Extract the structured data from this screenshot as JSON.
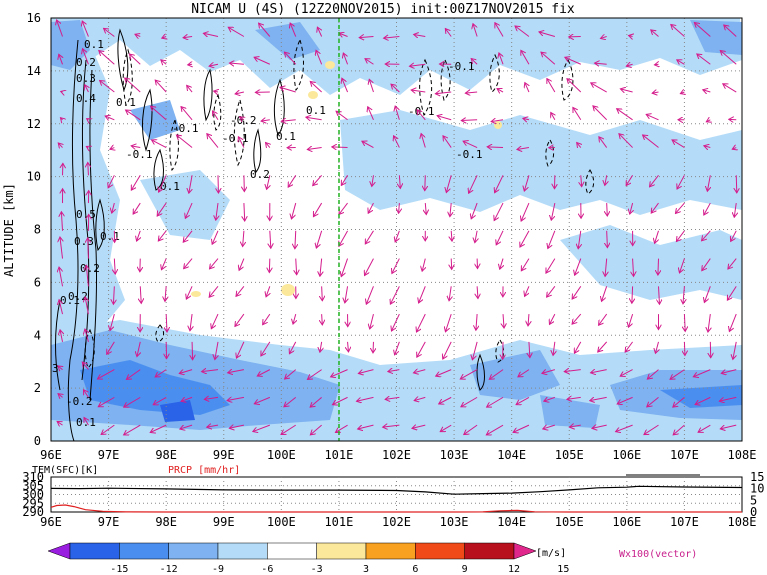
{
  "chart_data": {
    "type": "heatmap",
    "title": "NICAM U (4S) (12Z20NOV2015) init:00Z17NOV2015 fix",
    "ylabel": "ALTITUDE [km]",
    "xlim": [
      96,
      108
    ],
    "ylim": [
      0,
      16
    ],
    "x_ticks": [
      "96E",
      "97E",
      "98E",
      "99E",
      "100E",
      "101E",
      "102E",
      "103E",
      "104E",
      "105E",
      "106E",
      "107E",
      "108E"
    ],
    "y_ticks": [
      "0",
      "2",
      "4",
      "6",
      "8",
      "10",
      "12",
      "14",
      "16"
    ],
    "grid": true,
    "reference_line_lon": 101,
    "colorbar": {
      "ticks": [
        "-15",
        "-12",
        "-9",
        "-6",
        "-3",
        "3",
        "6",
        "9",
        "12",
        "15"
      ],
      "unit": "[m/s]",
      "colors": [
        "#9a1ee0",
        "#2a62e8",
        "#4a8ff0",
        "#7eb2f0",
        "#b4dcf8",
        "#ffffff",
        "#fbe89a",
        "#f8a020",
        "#f04a18",
        "#b8101c",
        "#e0288c"
      ]
    },
    "contour_labels": [
      "0.1",
      "0.2",
      "0.3",
      "0.4",
      "0.5",
      "0.3",
      "0.2",
      "0.1",
      "-0.1",
      "-0.2",
      "0.1",
      "-0.1",
      "0.1",
      "-0.1",
      "0.2",
      "0.1",
      "-0.1",
      "-0.1",
      "0.1",
      "-0.1",
      "0.1",
      "-0.2",
      "0.1",
      "0.2",
      "3"
    ],
    "vector_label": "Wx100(vector)",
    "vector_scale_label": "10",
    "surface_panel": {
      "left_label": "TEM(SFC)[K]",
      "right_label": "PRCP [mm/hr]",
      "left_ticks": [
        "310",
        "305",
        "300",
        "295",
        "290"
      ],
      "right_ticks": [
        "15",
        "10",
        "5",
        "0"
      ],
      "left_range": [
        290,
        310
      ],
      "right_range": [
        0,
        15
      ],
      "temperature": {
        "x": [
          96,
          96.5,
          97,
          98,
          99,
          100,
          101,
          102,
          102.5,
          103,
          103.5,
          104,
          104.5,
          105,
          105.5,
          106,
          106.2,
          107,
          108
        ],
        "y": [
          303.5,
          303.4,
          303.6,
          303.2,
          302.6,
          302.5,
          302.5,
          302.3,
          301.5,
          300.2,
          300.5,
          300.8,
          301.6,
          302.6,
          303.8,
          304.2,
          304.7,
          304.3,
          304.0
        ]
      },
      "precipitation": {
        "x": [
          96,
          96.1,
          96.25,
          96.4,
          96.6,
          96.9,
          97.3,
          98,
          99,
          100,
          101,
          102,
          103,
          103.5,
          103.8,
          104.1,
          104.4,
          105,
          106,
          107,
          108
        ],
        "y": [
          2.0,
          2.8,
          3.0,
          2.3,
          1.0,
          0.3,
          0.05,
          0,
          0,
          0,
          0,
          0,
          0,
          0.05,
          0.5,
          0.7,
          0.1,
          0,
          0,
          0,
          0
        ]
      }
    }
  }
}
